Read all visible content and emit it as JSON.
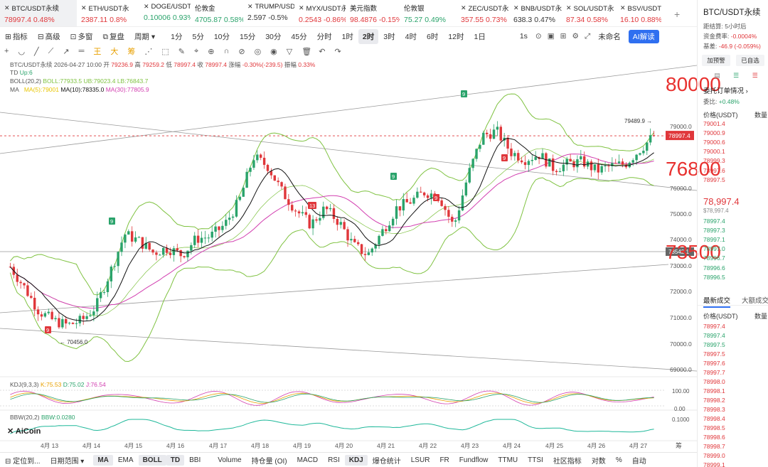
{
  "tickers": [
    {
      "name": "BTC/USDT永续",
      "price": "78997.4",
      "change": "0.48%",
      "dir": "dn",
      "active": true,
      "x": true
    },
    {
      "name": "ETH/USDT永",
      "price": "2387.11",
      "change": "0.8%",
      "dir": "dn",
      "x": true
    },
    {
      "name": "DOGE/USDT:",
      "price": "0.10006",
      "change": "0.93%",
      "dir": "up",
      "x": true
    },
    {
      "name": "伦敦金",
      "price": "4705.87",
      "change": "0.58%",
      "dir": "up",
      "x": false
    },
    {
      "name": "TRUMP/USD",
      "price": "2.597",
      "change": "-0.5%",
      "dir": "neutral",
      "x": true
    },
    {
      "name": "MYX/USDT永",
      "price": "0.2543",
      "change": "-0.86%",
      "dir": "dn",
      "x": true
    },
    {
      "name": "美元指数",
      "price": "98.4876",
      "change": "-0.15%",
      "dir": "dn",
      "x": false
    },
    {
      "name": "伦敦银",
      "price": "75.27",
      "change": "0.49%",
      "dir": "up",
      "x": false
    },
    {
      "name": "ZEC/USDT永",
      "price": "357.55",
      "change": "0.73%",
      "dir": "dn",
      "x": true
    },
    {
      "name": "BNB/USDT永",
      "price": "638.3",
      "change": "0.47%",
      "dir": "neutral",
      "x": true
    },
    {
      "name": "SOL/USDT永",
      "price": "87.34",
      "change": "0.58%",
      "dir": "dn",
      "x": true
    },
    {
      "name": "BSV/USDT永",
      "price": "16.10",
      "change": "0.88%",
      "dir": "dn",
      "x": true
    }
  ],
  "toolbar": {
    "left": [
      "指标",
      "高级",
      "多窗",
      "复盘",
      "周期"
    ],
    "periods": [
      "1分",
      "5分",
      "10分",
      "15分",
      "30分",
      "45分",
      "分时",
      "1时",
      "2时",
      "3时",
      "4时",
      "6时",
      "12时",
      "1日"
    ],
    "selected_period": "2时",
    "right": [
      "1s",
      "未命名",
      "AI解读"
    ]
  },
  "ohlc": {
    "label": "BTC/USDT永续",
    "time": "2026-04-27 10:00",
    "open_label": "开",
    "open": "79236.9",
    "high_label": "高",
    "high": "79259.2",
    "low_label": "低",
    "low": "78997.4",
    "close_label": "收",
    "close": "78997.4",
    "chg_label": "涨幅",
    "chg": "-0.30%(-239.5)",
    "amp_label": "振幅",
    "amp": "0.33%"
  },
  "indicators": {
    "td": "TD",
    "td_up": "Up:6",
    "boll": "BOLL(20,2)",
    "boll_val": "BOLL:77933.5",
    "boll_ub": "UB:79023.4",
    "boll_lb": "LB:76843.7",
    "ma": "MA",
    "ma5": "MA(5):79001",
    "ma10": "MA(10):78335.0",
    "ma30": "MA(30):77805.9",
    "kdj": "KDJ(9,3,3)",
    "kdj_k": "K:75.53",
    "kdj_d": "D:75.02",
    "kdj_j": "J:76.54",
    "bbw": "BBW(20,2)",
    "bbw_val": "BBW:0.0280"
  },
  "price_axis": {
    "labels": [
      "79000.0",
      "78000.0",
      "76000.0",
      "75000.0",
      "74000.0",
      "73000.0",
      "72000.0",
      "71000.0",
      "70000.0",
      "69000.0"
    ],
    "current": "78997.4",
    "line_label": "73542.1",
    "kdj_labels": [
      "100.00",
      "0.00"
    ],
    "bbw_labels": [
      "0.1000"
    ]
  },
  "annotations": {
    "high": "79489.9 →",
    "low": "← 70456.0",
    "big": [
      "80000",
      "76800",
      "73500"
    ]
  },
  "td_marks": [
    {
      "t": "9",
      "c": "g"
    },
    {
      "t": "9",
      "c": "r"
    },
    {
      "t": "9",
      "c": "g"
    },
    {
      "t": "13",
      "c": "r"
    },
    {
      "t": "9",
      "c": "g"
    },
    {
      "t": "9",
      "c": "r"
    },
    {
      "t": "9",
      "c": "r"
    }
  ],
  "xaxis": [
    "4月 13",
    "4月 14",
    "4月 15",
    "4月 16",
    "4月 17",
    "4月 18",
    "4月 19",
    "4月 20",
    "4月 21",
    "4月 22",
    "4月 23",
    "4月 24",
    "4月 25",
    "4月 26",
    "4月 27"
  ],
  "axis_corner": "筹",
  "logo": "AiCoin",
  "chart_data": {
    "type": "candlestick",
    "x": [
      "4月 13",
      "4月 14",
      "4月 15",
      "4月 16",
      "4月 17",
      "4月 18",
      "4月 19",
      "4月 20",
      "4月 21",
      "4月 22",
      "4月 23",
      "4月 24",
      "4月 25",
      "4月 26",
      "4月 27"
    ],
    "close_path": [
      73400,
      72500,
      71500,
      71100,
      70900,
      71100,
      71700,
      73200,
      74800,
      74500,
      74000,
      74200,
      73900,
      74600,
      74700,
      75200,
      76200,
      78100,
      77700,
      76600,
      75800,
      75200,
      75900,
      75300,
      74300,
      73900,
      74900,
      75900,
      76200,
      76600,
      76400,
      75100,
      77300,
      79000,
      79200,
      78300,
      78000,
      78200,
      77600,
      77800,
      77900,
      77500,
      77700,
      77800,
      78400,
      79000
    ],
    "low": 70456.0,
    "high": 79489.9,
    "current": 78997.4,
    "ylim": [
      68500,
      80800
    ]
  },
  "bottombar": [
    "定位到...",
    "日期范围",
    "MA",
    "EMA",
    "BOLL",
    "TD",
    "BBI",
    "Volume",
    "持仓量 (OI)",
    "MACD",
    "RSI",
    "KDJ",
    "爆仓统计",
    "LSUR",
    "FR",
    "Fundflow",
    "TTMU",
    "TTSI",
    "社区指标",
    "对数",
    "%",
    "自动"
  ],
  "bottom_selected": [
    "MA",
    "BOLL",
    "TD",
    "KDJ"
  ],
  "right": {
    "title": "BTC/USDT永续",
    "settle_label": "距结算:",
    "settle": "5小时后",
    "fund_label": "资金费率:",
    "fund": "-0.0004%",
    "basis_label": "基差:",
    "basis": "-46.9 (-0.059%)",
    "btn_warn": "加预警",
    "btn_fav": "已自选",
    "book_title": "委托订单情况",
    "ratio_label": "委比:",
    "ratio": "+0.48%",
    "col_price": "价格(USDT)",
    "col_qty": "数量",
    "asks": [
      "79001.4",
      "79000.9",
      "79000.6",
      "79000.1",
      "78999.3",
      "78997.6",
      "78997.5"
    ],
    "mid": "78,997.4",
    "mid_sub": "$78,997.4",
    "bids": [
      "78997.4",
      "78997.3",
      "78997.1",
      "78997.0",
      "78996.7",
      "78996.6",
      "78996.5"
    ],
    "tab_trades": "最新成交",
    "tab_large": "大额成交",
    "trades": [
      {
        "p": "78997.4",
        "c": "dn"
      },
      {
        "p": "78997.4",
        "c": "up"
      },
      {
        "p": "78997.5",
        "c": "up"
      },
      {
        "p": "78997.5",
        "c": "dn"
      },
      {
        "p": "78997.6",
        "c": "dn"
      },
      {
        "p": "78997.7",
        "c": "dn"
      },
      {
        "p": "78998.0",
        "c": "dn"
      },
      {
        "p": "78998.1",
        "c": "dn"
      },
      {
        "p": "78998.2",
        "c": "dn"
      },
      {
        "p": "78998.3",
        "c": "dn"
      },
      {
        "p": "78998.4",
        "c": "dn"
      },
      {
        "p": "78998.5",
        "c": "dn"
      },
      {
        "p": "78998.6",
        "c": "dn"
      },
      {
        "p": "78998.7",
        "c": "dn"
      },
      {
        "p": "78999.0",
        "c": "dn"
      },
      {
        "p": "78999.1",
        "c": "dn"
      }
    ]
  },
  "colors": {
    "up": "#2aa36b",
    "down": "#e0373b",
    "accent": "#2f6ff0",
    "boll": "#7fc241",
    "ma10": "#111111",
    "ma30": "#d23fb0",
    "ma5": "#e8c500",
    "big": "#e8312f"
  }
}
